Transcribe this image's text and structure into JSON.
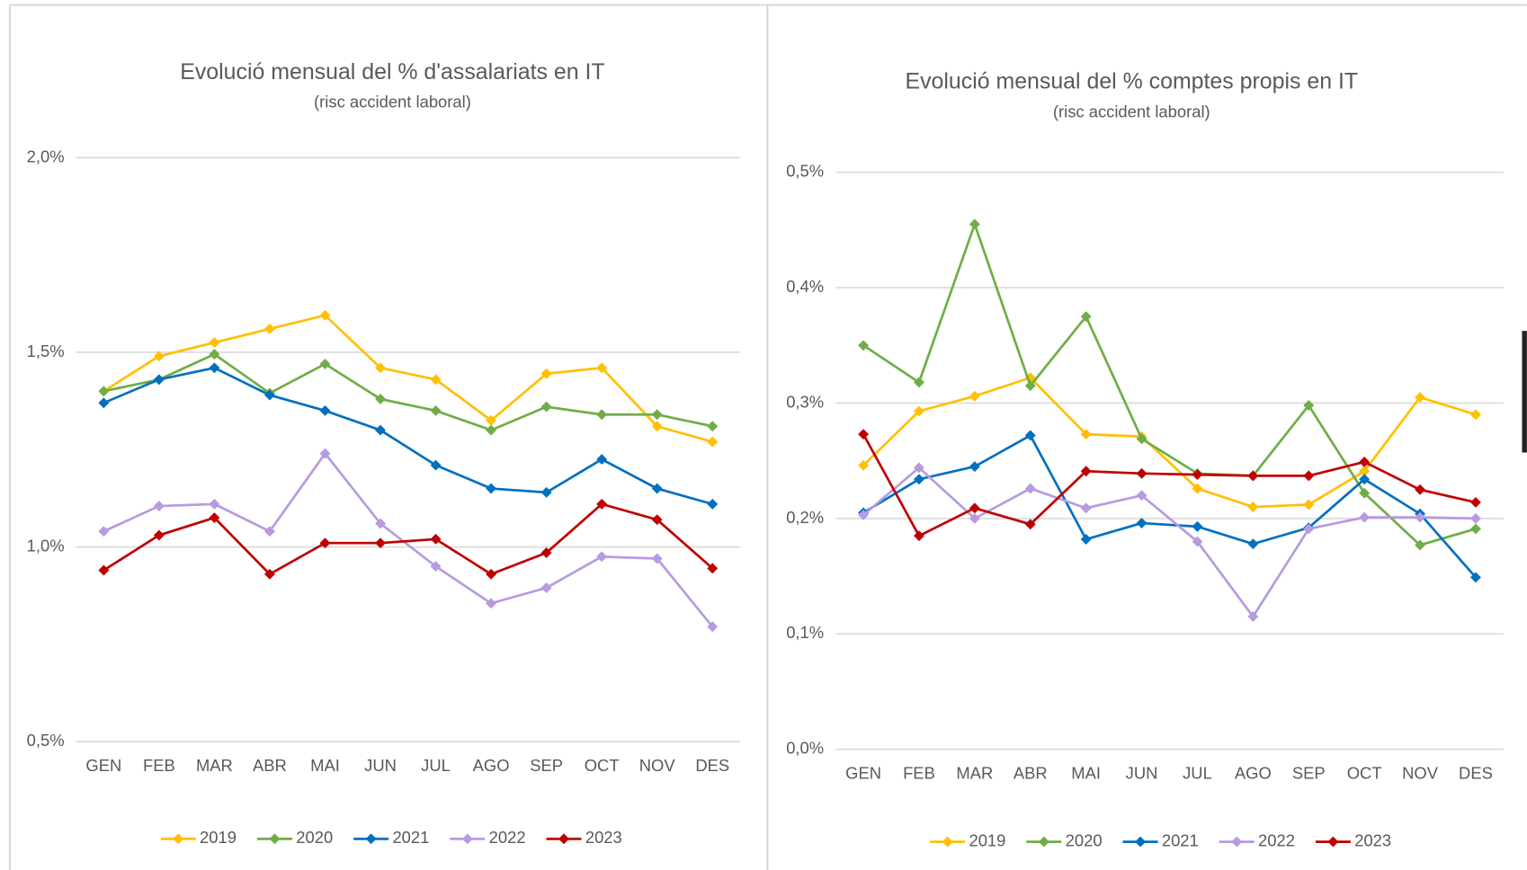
{
  "chart_data": [
    {
      "type": "line",
      "title": "Evolució mensual del % d'assalariats en IT",
      "subtitle": "(risc accident laboral)",
      "categories": [
        "GEN",
        "FEB",
        "MAR",
        "ABR",
        "MAI",
        "JUN",
        "JUL",
        "AGO",
        "SEP",
        "OCT",
        "NOV",
        "DES"
      ],
      "series": [
        {
          "name": "2019",
          "color": "#ffc000",
          "values": [
            1.4,
            1.49,
            1.525,
            1.56,
            1.595,
            1.46,
            1.43,
            1.325,
            1.445,
            1.46,
            1.31,
            1.27
          ]
        },
        {
          "name": "2020",
          "color": "#70ad47",
          "values": [
            1.4,
            1.43,
            1.495,
            1.395,
            1.47,
            1.38,
            1.35,
            1.3,
            1.36,
            1.34,
            1.34,
            1.31
          ]
        },
        {
          "name": "2021",
          "color": "#0070c0",
          "values": [
            1.37,
            1.43,
            1.46,
            1.39,
            1.35,
            1.3,
            1.21,
            1.15,
            1.14,
            1.225,
            1.15,
            1.11
          ]
        },
        {
          "name": "2022",
          "color": "#b89ae0",
          "values": [
            1.04,
            1.105,
            1.11,
            1.04,
            1.24,
            1.06,
            0.95,
            0.855,
            0.895,
            0.975,
            0.97,
            0.795
          ]
        },
        {
          "name": "2023",
          "color": "#c00000",
          "values": [
            0.94,
            1.03,
            1.075,
            0.93,
            1.01,
            1.01,
            1.02,
            0.93,
            0.985,
            1.11,
            1.07,
            0.945
          ]
        }
      ],
      "ylim": [
        0.5,
        2.0
      ],
      "yticks": [
        {
          "value": 0.5,
          "label": "0,5%"
        },
        {
          "value": 1.0,
          "label": "1,0%"
        },
        {
          "value": 1.5,
          "label": "1,5%"
        },
        {
          "value": 2.0,
          "label": "2,0%"
        }
      ],
      "grid": true,
      "legend": "bottom"
    },
    {
      "type": "line",
      "title": "Evolució mensual del % comptes propis en IT",
      "subtitle": "(risc accident laboral)",
      "categories": [
        "GEN",
        "FEB",
        "MAR",
        "ABR",
        "MAI",
        "JUN",
        "JUL",
        "AGO",
        "SEP",
        "OCT",
        "NOV",
        "DES"
      ],
      "series": [
        {
          "name": "2019",
          "color": "#ffc000",
          "values": [
            0.246,
            0.293,
            0.306,
            0.322,
            0.273,
            0.271,
            0.226,
            0.21,
            0.212,
            0.241,
            0.305,
            0.29
          ]
        },
        {
          "name": "2020",
          "color": "#70ad47",
          "values": [
            0.35,
            0.318,
            0.455,
            0.315,
            0.375,
            0.269,
            0.239,
            0.237,
            0.298,
            0.222,
            0.177,
            0.191
          ]
        },
        {
          "name": "2021",
          "color": "#0070c0",
          "values": [
            0.205,
            0.234,
            0.245,
            0.272,
            0.182,
            0.196,
            0.193,
            0.178,
            0.192,
            0.234,
            0.204,
            0.149
          ]
        },
        {
          "name": "2022",
          "color": "#b89ae0",
          "values": [
            0.203,
            0.244,
            0.2,
            0.226,
            0.209,
            0.22,
            0.18,
            0.115,
            0.191,
            0.201,
            0.201,
            0.2
          ]
        },
        {
          "name": "2023",
          "color": "#c00000",
          "values": [
            0.273,
            0.185,
            0.209,
            0.195,
            0.241,
            0.239,
            0.238,
            0.237,
            0.237,
            0.249,
            0.225,
            0.214
          ]
        }
      ],
      "ylim": [
        0.0,
        0.5
      ],
      "yticks": [
        {
          "value": 0.0,
          "label": "0,0%"
        },
        {
          "value": 0.1,
          "label": "0,1%"
        },
        {
          "value": 0.2,
          "label": "0,2%"
        },
        {
          "value": 0.3,
          "label": "0,3%"
        },
        {
          "value": 0.4,
          "label": "0,4%"
        },
        {
          "value": 0.5,
          "label": "0,5%"
        }
      ],
      "grid": true,
      "legend": "bottom"
    }
  ]
}
